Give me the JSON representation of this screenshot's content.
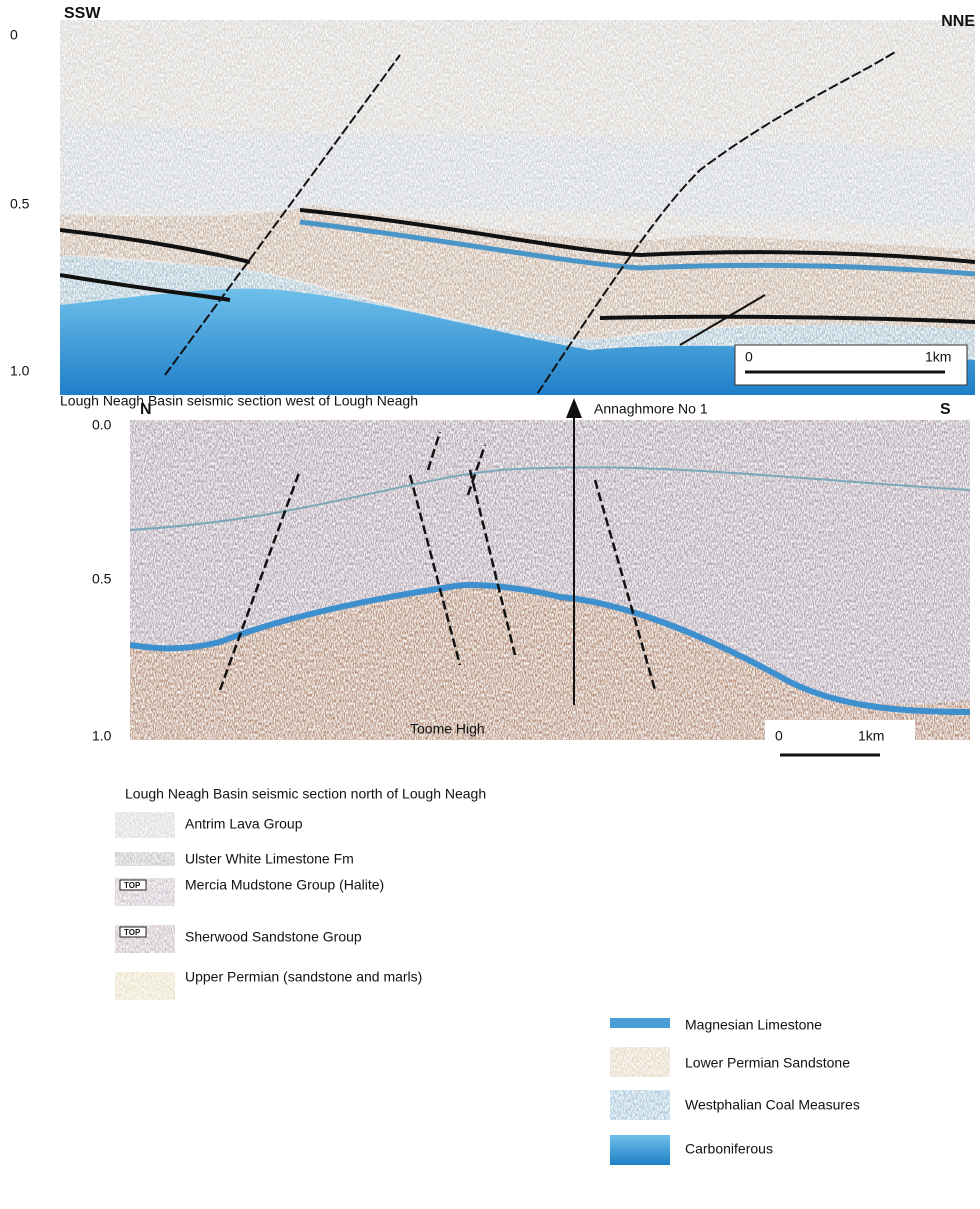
{
  "section_west": {
    "left_label": "SSW",
    "right_label": "NNE",
    "depth_labels": [
      "0",
      "0.5",
      "1.0"
    ],
    "scale_start": "0",
    "scale_end": "1km",
    "caption": "Lough Neagh Basin  seismic section west of Lough Neagh"
  },
  "section_north": {
    "left_label": "N",
    "right_label": "S",
    "depth_labels": [
      "0.0",
      "0.5",
      "1.0"
    ],
    "well_label": "Annaghmore No 1",
    "feature_label": "Toome High",
    "scale_start": "0",
    "scale_end": "1km",
    "caption": "Lough Neagh Basin  seismic section north of Lough Neagh"
  },
  "legend": {
    "swatch_tag": "TOP",
    "items": [
      "Antrim Lava Group",
      "Ulster White Limestone Fm",
      "Mercia Mudstone Group (Halite)",
      "Sherwood Sandstone Group",
      "Upper Permian (sandstone and marls)",
      "Magnesian Limestone",
      "Lower Permian Sandstone",
      "Westphalian Coal Measures",
      "Carboniferous"
    ]
  }
}
